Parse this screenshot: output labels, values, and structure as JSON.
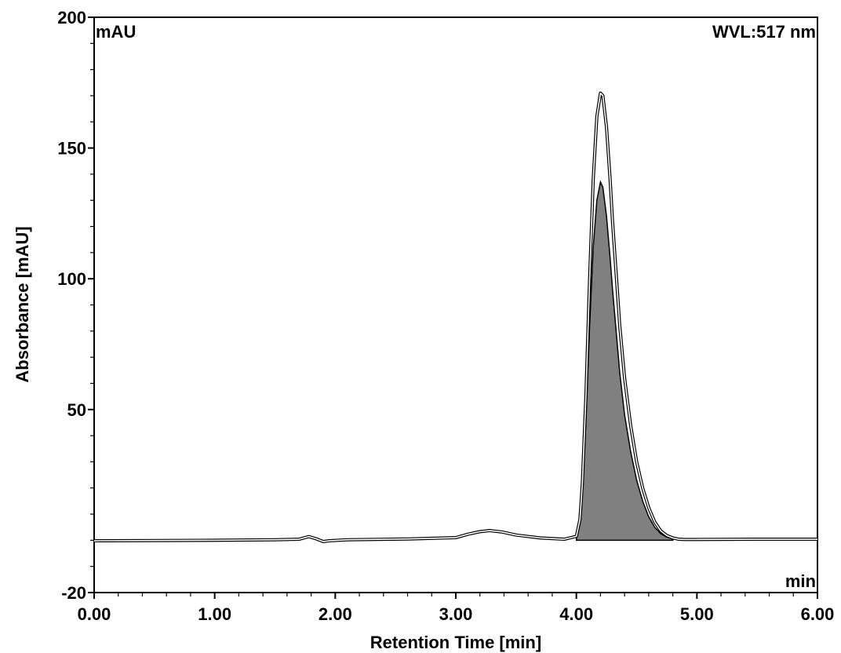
{
  "chart_data": {
    "type": "area",
    "xlabel": "Retention Time [min]",
    "ylabel": "Absorbance [mAU]",
    "x_unit": "min",
    "y_unit": "mAU",
    "wavelength_label": "WVL:517 nm",
    "xlim": [
      0.0,
      6.0
    ],
    "ylim": [
      -20,
      200
    ],
    "x_ticks": [
      "0.00",
      "1.00",
      "2.00",
      "3.00",
      "4.00",
      "5.00",
      "6.00"
    ],
    "y_ticks": [
      "-20",
      "50",
      "100",
      "150",
      "200"
    ],
    "y_tick_values": [
      -20,
      50,
      100,
      150,
      200
    ],
    "grid": false,
    "series": [
      {
        "style": "outline",
        "x": [
          0.0,
          0.5,
          1.0,
          1.5,
          1.7,
          1.78,
          1.84,
          1.9,
          1.95,
          2.1,
          2.6,
          3.0,
          3.1,
          3.2,
          3.28,
          3.38,
          3.5,
          3.7,
          3.9,
          4.0,
          4.03,
          4.05,
          4.08,
          4.11,
          4.14,
          4.17,
          4.2,
          4.22,
          4.25,
          4.28,
          4.3,
          4.33,
          4.36,
          4.4,
          4.45,
          4.5,
          4.55,
          4.6,
          4.65,
          4.7,
          4.75,
          4.8,
          4.85,
          4.9,
          5.0,
          5.5,
          6.0
        ],
        "y": [
          -0.2,
          -0.1,
          0.0,
          0.2,
          0.4,
          1.4,
          0.6,
          -0.5,
          -0.2,
          0.2,
          0.5,
          1.0,
          2.3,
          3.3,
          3.7,
          3.2,
          2.0,
          0.9,
          0.4,
          1.5,
          8.0,
          22.0,
          56.0,
          100.0,
          138.0,
          162.0,
          171.0,
          170.0,
          158.0,
          138.0,
          122.0,
          102.0,
          82.0,
          62.0,
          44.0,
          30.0,
          20.0,
          12.5,
          7.0,
          3.6,
          1.8,
          0.9,
          0.4,
          0.3,
          0.3,
          0.4,
          0.4
        ]
      },
      {
        "style": "filled",
        "x": [
          4.0,
          4.03,
          4.05,
          4.08,
          4.11,
          4.14,
          4.17,
          4.2,
          4.22,
          4.25,
          4.28,
          4.3,
          4.33,
          4.36,
          4.4,
          4.45,
          4.5,
          4.55,
          4.6,
          4.65,
          4.7,
          4.75,
          4.8
        ],
        "y": [
          0.5,
          6.0,
          18.0,
          46.0,
          82.0,
          112.0,
          130.0,
          137.0,
          135.0,
          124.0,
          108.0,
          96.0,
          80.0,
          64.0,
          48.0,
          34.0,
          23.0,
          15.0,
          9.0,
          5.0,
          2.5,
          1.2,
          0.5
        ]
      }
    ]
  }
}
